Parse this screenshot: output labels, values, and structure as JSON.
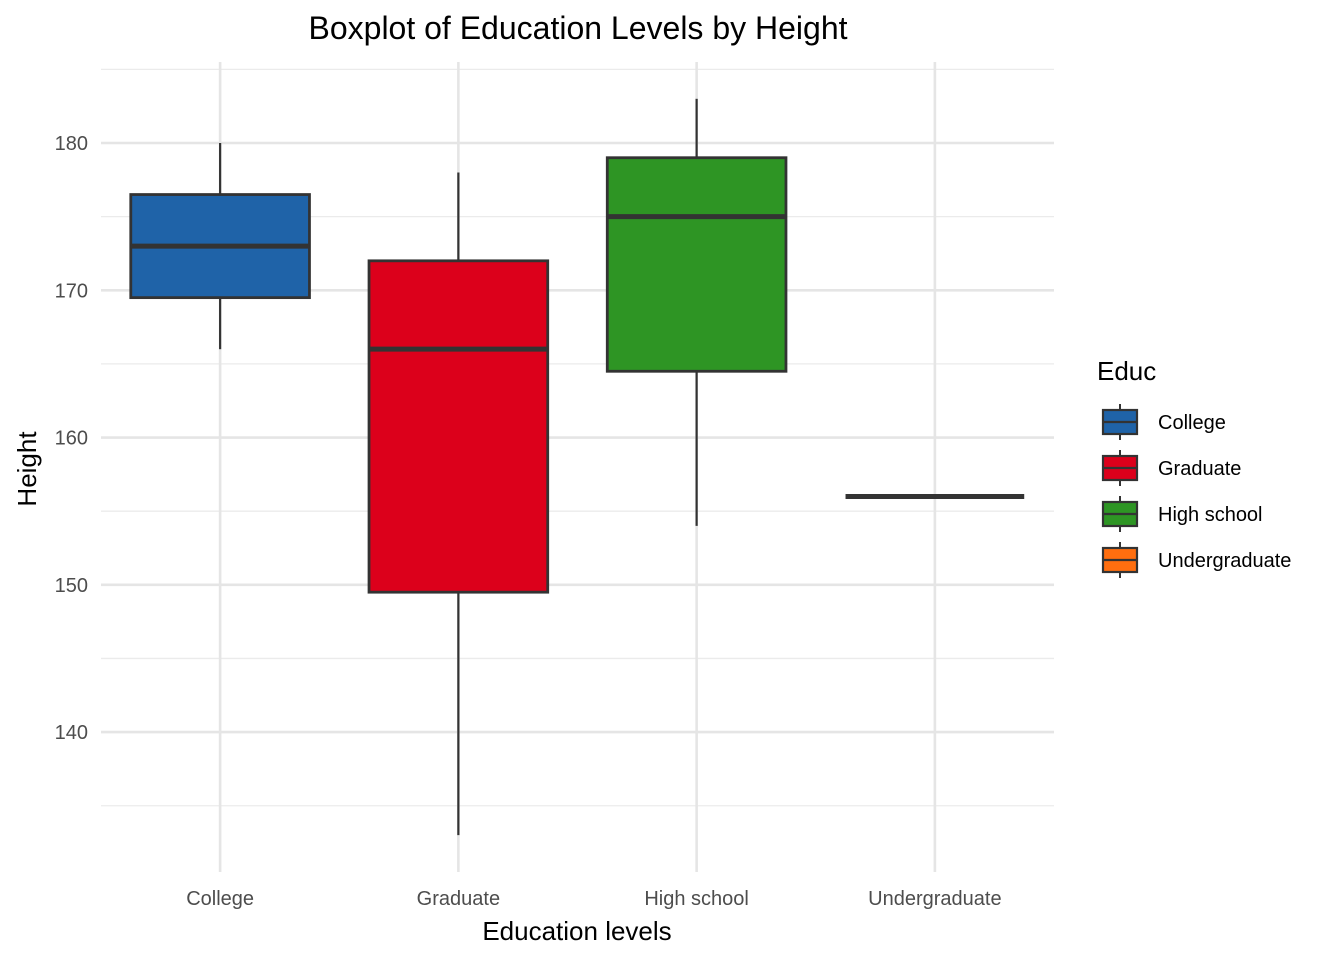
{
  "chart_data": {
    "type": "boxplot",
    "title": "Boxplot of Education Levels by Height",
    "xlabel": "Education levels",
    "ylabel": "Height",
    "ylim": [
      130.5,
      185.5
    ],
    "yticks": [
      140,
      150,
      160,
      170,
      180
    ],
    "grid": true,
    "categories": [
      "College",
      "Graduate",
      "High school",
      "Undergraduate"
    ],
    "boxes": [
      {
        "category": "College",
        "min": 166,
        "q1": 169.5,
        "median": 173,
        "q3": 176.5,
        "max": 180,
        "color": "#1f63a8"
      },
      {
        "category": "Graduate",
        "min": 133,
        "q1": 149.5,
        "median": 166,
        "q3": 172,
        "max": 178,
        "color": "#dc001b"
      },
      {
        "category": "High school",
        "min": 154,
        "q1": 164.5,
        "median": 175,
        "q3": 179,
        "max": 183,
        "color": "#2e9524"
      },
      {
        "category": "Undergraduate",
        "min": 156,
        "q1": 156,
        "median": 156,
        "q3": 156,
        "max": 156,
        "color": "#ff6e0f"
      }
    ],
    "legend": {
      "title": "Educ",
      "placement": "right",
      "items": [
        "College",
        "Graduate",
        "High school",
        "Undergraduate"
      ]
    }
  }
}
